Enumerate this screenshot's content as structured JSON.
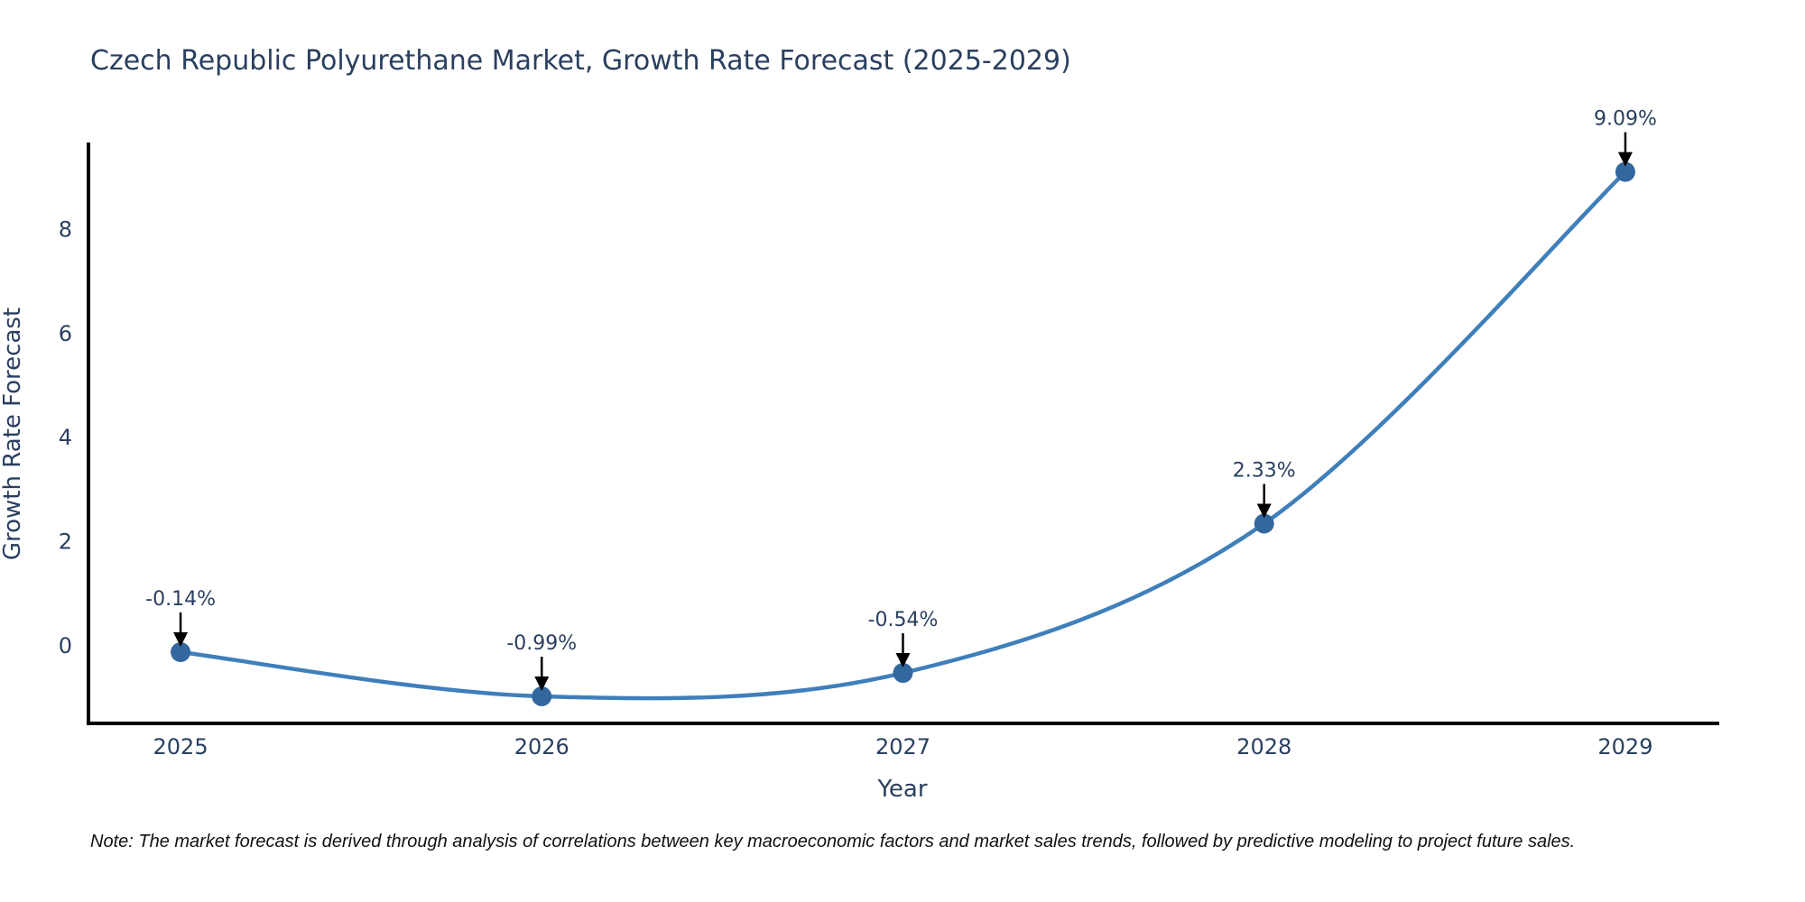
{
  "note": "Note: The market forecast is derived through analysis of correlations between key macroeconomic factors and market sales trends, followed by predictive modeling to project future sales.",
  "chart_data": {
    "type": "line",
    "title": "Czech Republic Polyurethane Market, Growth Rate Forecast (2025-2029)",
    "xlabel": "Year",
    "ylabel": "Growth Rate Forecast",
    "x": [
      2025,
      2026,
      2027,
      2028,
      2029
    ],
    "categories": [
      "2025",
      "2026",
      "2027",
      "2028",
      "2029"
    ],
    "values": [
      -0.14,
      -0.99,
      -0.54,
      2.33,
      9.09
    ],
    "point_labels": [
      "-0.14%",
      "-0.99%",
      "-0.54%",
      "2.33%",
      "9.09%"
    ],
    "yticks": [
      0,
      2,
      4,
      6,
      8
    ],
    "ylim": [
      -1.51,
      9.62
    ],
    "xlim": [
      2024.745,
      2029.255
    ],
    "line_shape": "spline",
    "grid": false,
    "legend": "none",
    "colors": {
      "line": "#3f7fba",
      "marker": "#33689e",
      "axis": "#000000",
      "text": "#2a3f5f",
      "annotation_text": "#2a3f5f",
      "annotation_arrow": "#000000",
      "background": "#ffffff"
    }
  }
}
